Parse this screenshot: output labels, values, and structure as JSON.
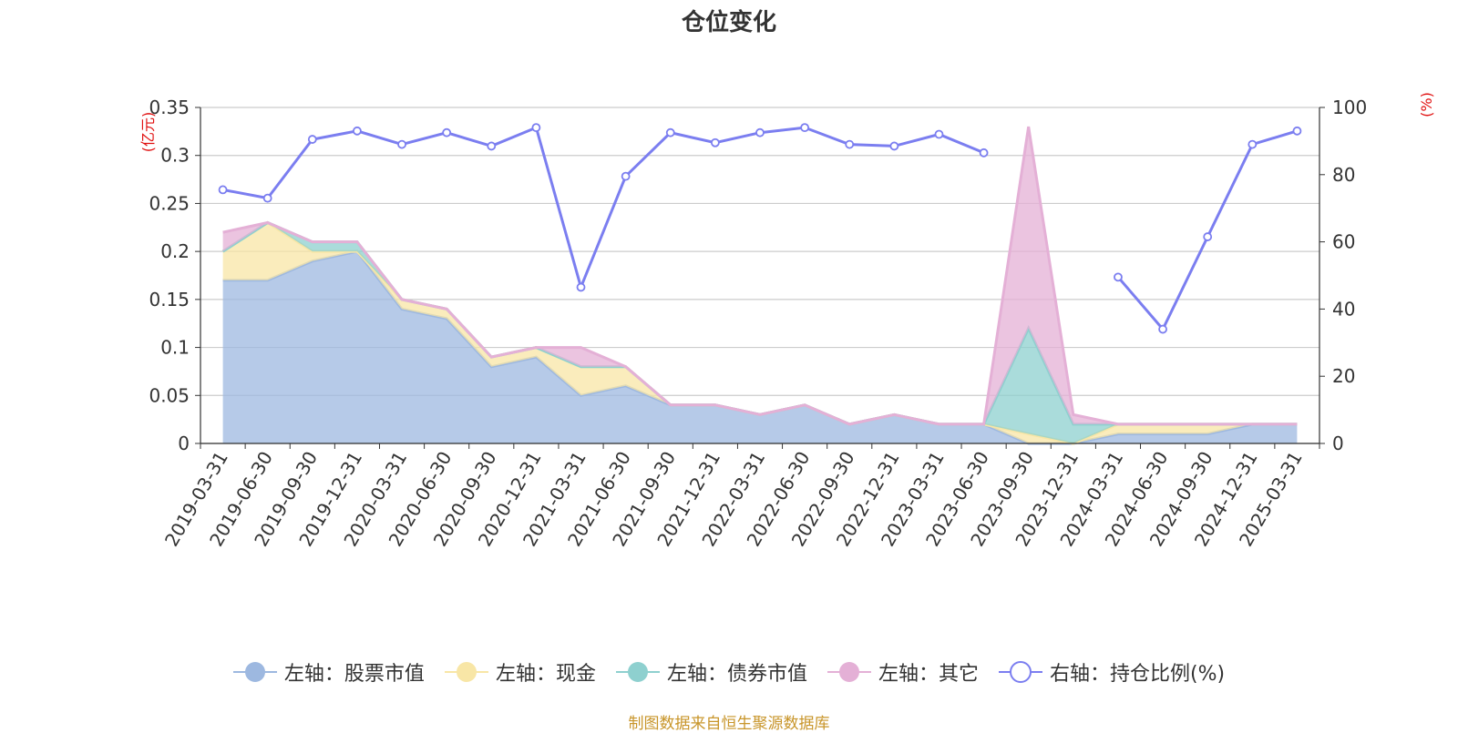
{
  "chart_data": {
    "type": "area",
    "title": "仓位变化",
    "left_axis": {
      "label": "(亿元)",
      "ticks": [
        "0",
        "0.05",
        "0.1",
        "0.15",
        "0.2",
        "0.25",
        "0.3",
        "0.35"
      ],
      "range": [
        0,
        0.35
      ]
    },
    "right_axis": {
      "label": "(%)",
      "ticks": [
        "0",
        "20",
        "40",
        "60",
        "80",
        "100"
      ],
      "range": [
        0,
        100
      ]
    },
    "categories": [
      "2019-03-31",
      "2019-06-30",
      "2019-09-30",
      "2019-12-31",
      "2020-03-31",
      "2020-06-30",
      "2020-09-30",
      "2020-12-31",
      "2021-03-31",
      "2021-06-30",
      "2021-09-30",
      "2021-12-31",
      "2022-03-31",
      "2022-06-30",
      "2022-09-30",
      "2022-12-31",
      "2023-03-31",
      "2023-06-30",
      "2023-09-30",
      "2023-12-31",
      "2024-03-31",
      "2024-06-30",
      "2024-09-30",
      "2024-12-31",
      "2025-03-31"
    ],
    "series": [
      {
        "name": "左轴：股票市值",
        "axis": "left",
        "stacked": true,
        "color": "#9db8e0",
        "values": [
          0.17,
          0.17,
          0.19,
          0.2,
          0.14,
          0.13,
          0.08,
          0.09,
          0.05,
          0.06,
          0.04,
          0.04,
          0.03,
          0.04,
          0.02,
          0.03,
          0.02,
          0.02,
          0.0,
          0.0,
          0.01,
          0.01,
          0.01,
          0.02,
          0.02
        ]
      },
      {
        "name": "左轴：现金",
        "axis": "left",
        "stacked": true,
        "color": "#f8e6a6",
        "values": [
          0.03,
          0.06,
          0.01,
          0.0,
          0.01,
          0.01,
          0.01,
          0.01,
          0.03,
          0.02,
          0.0,
          0.0,
          0.0,
          0.0,
          0.0,
          0.0,
          0.0,
          0.0,
          0.01,
          0.0,
          0.01,
          0.01,
          0.01,
          0.0,
          0.0
        ]
      },
      {
        "name": "左轴：债券市值",
        "axis": "left",
        "stacked": true,
        "color": "#8ed0cf",
        "values": [
          0.0,
          0.0,
          0.01,
          0.01,
          0.0,
          0.0,
          0.0,
          0.0,
          0.0,
          0.0,
          0.0,
          0.0,
          0.0,
          0.0,
          0.0,
          0.0,
          0.0,
          0.0,
          0.11,
          0.02,
          0.0,
          0.0,
          0.0,
          0.0,
          0.0
        ]
      },
      {
        "name": "左轴：其它",
        "axis": "left",
        "stacked": true,
        "color": "#e4b0d6",
        "values": [
          0.02,
          0.0,
          0.0,
          0.0,
          0.0,
          0.0,
          0.0,
          0.0,
          0.02,
          0.0,
          0.0,
          0.0,
          0.0,
          0.0,
          0.0,
          0.0,
          0.0,
          0.0,
          0.21,
          0.01,
          0.0,
          0.0,
          0.0,
          0.0,
          0.0
        ]
      },
      {
        "name": "右轴：持仓比例(%)",
        "axis": "right",
        "type": "line",
        "color": "#7b7ef0",
        "values": [
          75.5,
          73,
          90.5,
          93,
          89,
          92.5,
          88.5,
          94,
          46.5,
          79.5,
          92.5,
          89.5,
          92.5,
          94,
          89,
          88.5,
          92,
          86.5,
          null,
          null,
          49.5,
          34,
          61.5,
          89,
          93
        ]
      }
    ],
    "legend_position": "bottom",
    "grid": true,
    "source_note": "制图数据来自恒生聚源数据库"
  }
}
